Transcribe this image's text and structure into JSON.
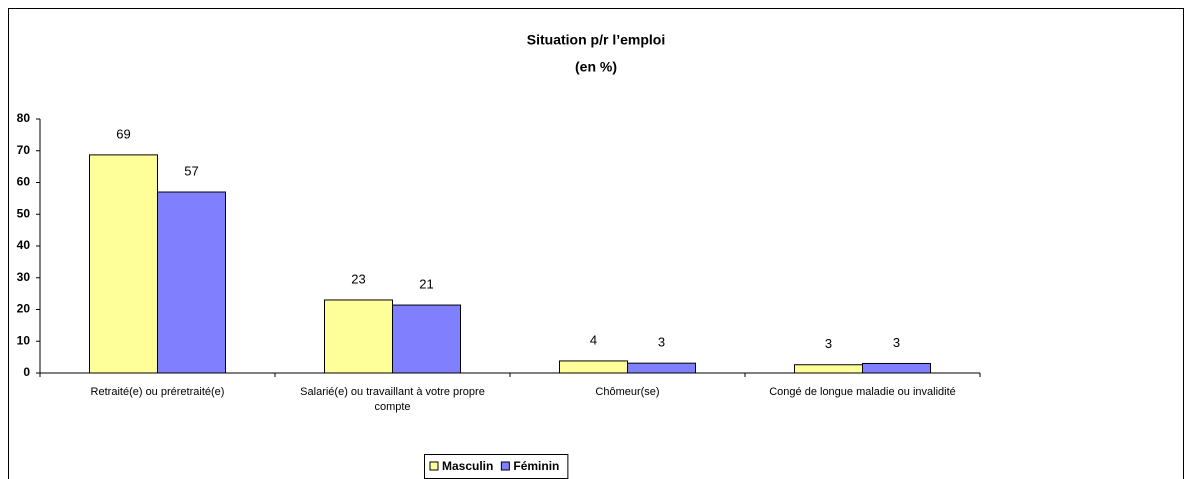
{
  "chart_data": {
    "type": "bar",
    "title": "Situation p/r l’emploi",
    "subtitle": "(en %)",
    "categories": [
      "Retraité(e) ou préretraité(e)",
      "Salarié(e) ou travaillant à votre propre compte",
      "Chômeur(se)",
      "Congé de longue maladie ou invalidité"
    ],
    "series": [
      {
        "name": "Masculin",
        "color": "#ffff99",
        "values": [
          68.7,
          23,
          3.8,
          2.6
        ],
        "value_labels": [
          "69",
          "23",
          "4",
          "3"
        ]
      },
      {
        "name": "Féminin",
        "color": "#8080ff",
        "values": [
          57,
          21.4,
          3.1,
          3
        ],
        "value_labels": [
          "57",
          "21",
          "3",
          "3"
        ]
      }
    ],
    "ylim": [
      0,
      80
    ],
    "yticks": [
      0,
      10,
      20,
      30,
      40,
      50,
      60,
      70,
      80
    ],
    "grid": false,
    "legend": "bottom"
  }
}
